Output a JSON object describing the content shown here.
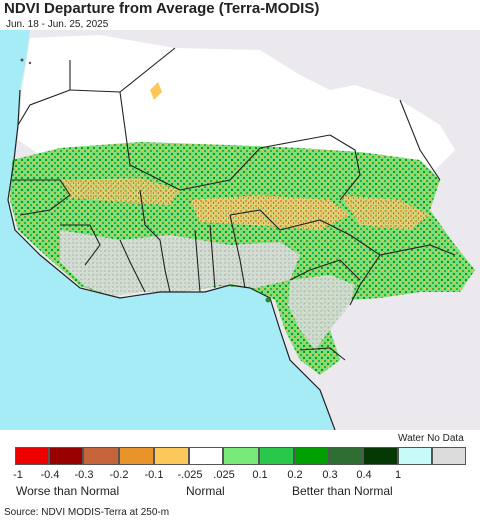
{
  "title": "NDVI Departure from Average (Terra-MODIS)",
  "date_range": "Jun. 18 - Jun. 25, 2025",
  "colors": {
    "ocean": "#a6ecf7",
    "land_outside": "#ece9ee",
    "sahara": "#ffffff",
    "no_data": "#d0d0d0",
    "borders": "#222222"
  },
  "legend": {
    "water_no_data_label": "Water No Data",
    "swatches": [
      {
        "color": "#ee0000"
      },
      {
        "color": "#990000"
      },
      {
        "color": "#c8643c"
      },
      {
        "color": "#e89428"
      },
      {
        "color": "#fcc85a"
      },
      {
        "color": "#ffffff"
      },
      {
        "color": "#78e878"
      },
      {
        "color": "#2ac84a"
      },
      {
        "color": "#00a000"
      },
      {
        "color": "#2e6e32"
      },
      {
        "color": "#043804"
      }
    ],
    "water_color": "#c8fafa",
    "nodata_color": "#dcdcdc",
    "ticks": [
      "-1",
      "-0.4",
      "-0.3",
      "-0.2",
      "-0.1",
      "-.025",
      ".025",
      "0.1",
      "0.2",
      "0.3",
      "0.4",
      "1"
    ],
    "labels": {
      "worse": "Worse than Normal",
      "normal": "Normal",
      "better": "Better than Normal"
    }
  },
  "source": "Source: NDVI MODIS-Terra at 250-m"
}
